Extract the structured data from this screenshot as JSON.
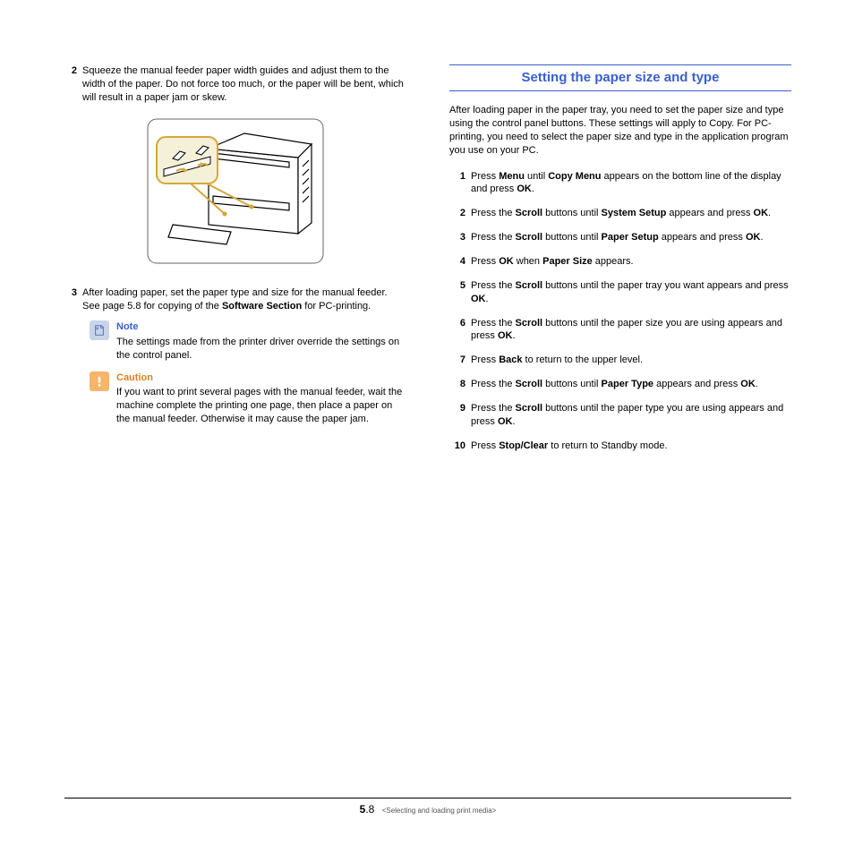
{
  "left": {
    "steps": [
      {
        "num": "2",
        "text": "Squeeze the manual feeder paper width guides and adjust them to the width of the paper. Do not force too much, or the paper will be bent, which will result in a paper jam or skew."
      },
      {
        "num": "3",
        "parts": [
          "After loading paper, set the paper type and size for the manual feeder. See page 5.8 for copying of the ",
          "Software Section",
          " for PC-printing."
        ]
      }
    ],
    "note": {
      "title": "Note",
      "text": "The settings made from the printer driver override the settings on the control panel."
    },
    "caution": {
      "title": "Caution",
      "text": "If you want to print several pages with the manual feeder, wait the machine complete the printing one page, then place a paper on the manual feeder. Otherwise it may cause the paper jam."
    }
  },
  "right": {
    "heading": "Setting the paper size and type",
    "intro": "After loading paper in the paper tray, you need to set the paper size and type using the control panel buttons. These settings will apply to Copy. For PC-printing, you need to select the paper size and type in the application program you use on your PC.",
    "steps": [
      {
        "num": "1",
        "parts": [
          "Press ",
          "Menu",
          " until ",
          "Copy Menu",
          " appears on the bottom line of the display and press ",
          "OK",
          "."
        ]
      },
      {
        "num": "2",
        "parts": [
          "Press the ",
          "Scroll",
          " buttons until ",
          "System Setup",
          " appears and press ",
          "OK",
          "."
        ]
      },
      {
        "num": "3",
        "parts": [
          "Press the ",
          "Scroll",
          " buttons until ",
          "Paper Setup",
          " appears and press ",
          "OK",
          "."
        ]
      },
      {
        "num": "4",
        "parts": [
          "Press ",
          "OK",
          " when ",
          "Paper Size",
          " appears."
        ]
      },
      {
        "num": "5",
        "parts": [
          "Press the ",
          "Scroll",
          " buttons until the paper tray you want appears and press ",
          "OK",
          "."
        ]
      },
      {
        "num": "6",
        "parts": [
          "Press the ",
          "Scroll",
          " buttons until the paper size you are using appears and press ",
          "OK",
          "."
        ]
      },
      {
        "num": "7",
        "parts": [
          "Press ",
          "Back",
          " to return to the upper level."
        ]
      },
      {
        "num": "8",
        "parts": [
          "Press the ",
          "Scroll",
          " buttons until ",
          "Paper Type",
          " appears and press ",
          "OK",
          "."
        ]
      },
      {
        "num": "9",
        "parts": [
          "Press the ",
          "Scroll",
          " buttons until the paper type you are using appears and press ",
          "OK",
          "."
        ]
      },
      {
        "num": "10",
        "parts": [
          "Press ",
          "Stop/Clear",
          " to return to Standby mode."
        ]
      }
    ]
  },
  "footer": {
    "chapter_num": "5",
    "page_sub": ".8",
    "breadcrumb": "<Selecting and loading print media>"
  },
  "colors": {
    "link_blue": "#3a5fcd",
    "caution_orange": "#e08020",
    "note_bg": "#c9d4e9",
    "caution_bg": "#f5b56a",
    "callout_bg": "#f5f0d8",
    "callout_border": "#d4a838"
  }
}
